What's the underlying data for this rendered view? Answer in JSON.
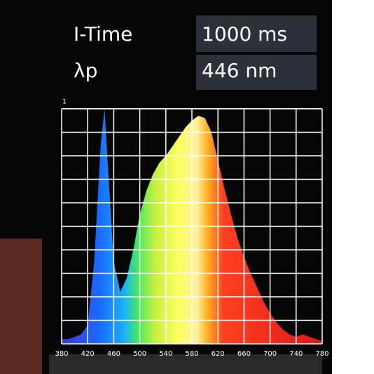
{
  "header": {
    "rows": [
      {
        "label": "I-Time",
        "value": "1000 ms"
      },
      {
        "label": "λp",
        "value": "446 nm"
      }
    ]
  },
  "chart_data": {
    "type": "area",
    "x": [
      380,
      390,
      400,
      410,
      420,
      430,
      440,
      446,
      450,
      460,
      470,
      480,
      490,
      500,
      510,
      520,
      530,
      540,
      550,
      560,
      570,
      580,
      590,
      600,
      610,
      620,
      630,
      640,
      650,
      660,
      670,
      680,
      690,
      700,
      710,
      720,
      730,
      740,
      750,
      760,
      770,
      780
    ],
    "values": [
      0.02,
      0.02,
      0.03,
      0.04,
      0.08,
      0.35,
      0.85,
      1.0,
      0.8,
      0.35,
      0.22,
      0.28,
      0.4,
      0.55,
      0.65,
      0.72,
      0.77,
      0.8,
      0.84,
      0.88,
      0.92,
      0.95,
      0.97,
      0.96,
      0.9,
      0.78,
      0.66,
      0.55,
      0.45,
      0.37,
      0.3,
      0.24,
      0.18,
      0.13,
      0.09,
      0.06,
      0.04,
      0.03,
      0.04,
      0.03,
      0.02,
      0.01
    ],
    "xlim": [
      380,
      780
    ],
    "xticks": [
      380,
      420,
      460,
      500,
      540,
      580,
      620,
      660,
      700,
      740,
      780
    ],
    "ylim": [
      0,
      1
    ],
    "yticks": [
      1
    ],
    "grid": true
  }
}
